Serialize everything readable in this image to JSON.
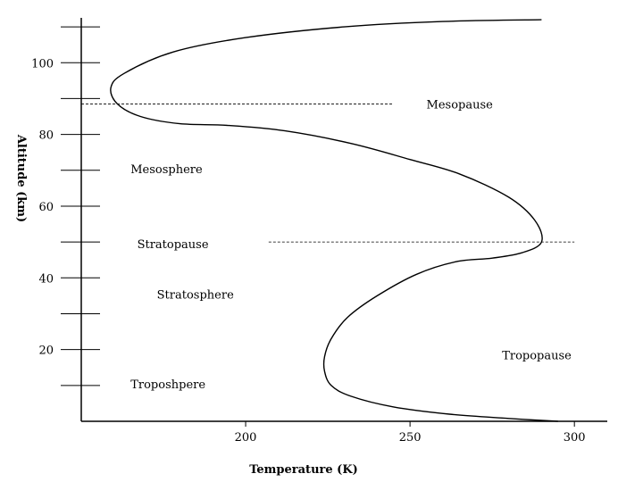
{
  "chart_data": {
    "type": "line",
    "title": "",
    "xlabel": "Temperature (K)",
    "ylabel": "Altitude (km)",
    "xlim": [
      150,
      310
    ],
    "ylim": [
      0,
      115
    ],
    "x_ticks": [
      200,
      250,
      300
    ],
    "y_ticks_labeled": [
      20,
      40,
      60,
      80,
      100
    ],
    "y_ticks_minor": [
      10,
      30,
      50,
      70,
      90,
      110
    ],
    "grid": false,
    "series": [
      {
        "name": "",
        "points": [
          [
            295,
            0
          ],
          [
            280,
            0.8
          ],
          [
            262,
            2
          ],
          [
            245,
            4
          ],
          [
            232,
            7
          ],
          [
            226,
            10
          ],
          [
            224,
            14
          ],
          [
            224,
            18
          ],
          [
            226,
            23
          ],
          [
            231,
            29
          ],
          [
            240,
            35
          ],
          [
            252,
            41
          ],
          [
            264,
            44.5
          ],
          [
            275,
            45.5
          ],
          [
            284,
            47
          ],
          [
            290,
            50
          ],
          [
            288,
            56
          ],
          [
            280,
            62.5
          ],
          [
            265,
            69
          ],
          [
            250,
            73
          ],
          [
            232,
            77.5
          ],
          [
            212,
            81
          ],
          [
            195,
            82.5
          ],
          [
            180,
            83
          ],
          [
            168,
            85
          ],
          [
            161,
            88.5
          ],
          [
            159,
            93
          ],
          [
            163,
            97
          ],
          [
            178,
            103
          ],
          [
            200,
            107
          ],
          [
            230,
            110
          ],
          [
            260,
            111.5
          ],
          [
            290,
            112
          ]
        ]
      }
    ],
    "reference_lines": [
      {
        "label": "Mesopause",
        "y": 88.5,
        "x_from": 150,
        "x_to": 245
      },
      {
        "label": "Stratopause",
        "y": 50,
        "x_from": 207,
        "x_to": 300
      }
    ],
    "region_labels": [
      {
        "text": "Mesopause",
        "x": 255,
        "y": 88.5
      },
      {
        "text": "Mesosphere",
        "x": 165,
        "y": 70.5
      },
      {
        "text": "Stratopause",
        "x": 167,
        "y": 49.5
      },
      {
        "text": "Stratosphere",
        "x": 173,
        "y": 35.5
      },
      {
        "text": "Tropopause",
        "x": 278,
        "y": 18.5
      },
      {
        "text": "Troposhpere",
        "x": 165,
        "y": 10.5
      }
    ]
  }
}
